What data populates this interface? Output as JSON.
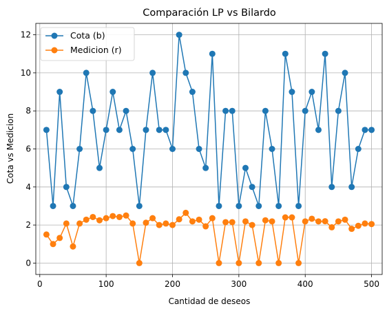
{
  "chart_data": {
    "type": "line",
    "title": "Comparación LP vs Bilardo",
    "xlabel": "Cantidad de deseos",
    "ylabel": "Cota vs Medicion",
    "xlim": [
      -6,
      516
    ],
    "ylim": [
      -0.6,
      12.6
    ],
    "xticks": [
      0,
      100,
      200,
      300,
      400,
      500
    ],
    "yticks": [
      0,
      2,
      4,
      6,
      8,
      10,
      12
    ],
    "grid": true,
    "legend_position": "upper-left",
    "x": [
      10,
      20,
      30,
      40,
      50,
      60,
      70,
      80,
      90,
      100,
      110,
      120,
      130,
      140,
      150,
      160,
      170,
      180,
      190,
      200,
      210,
      220,
      230,
      240,
      250,
      260,
      270,
      280,
      290,
      300,
      310,
      320,
      330,
      340,
      350,
      360,
      370,
      380,
      390,
      400,
      410,
      420,
      430,
      440,
      450,
      460,
      470,
      480,
      490,
      500
    ],
    "series": [
      {
        "name": "Cota (b)",
        "color": "#1f77b4",
        "values": [
          7,
          3,
          9,
          4,
          3,
          6,
          10,
          8,
          5,
          7,
          9,
          7,
          8,
          6,
          3,
          7,
          10,
          7,
          7,
          6,
          12,
          10,
          9,
          6,
          5,
          11,
          3,
          8,
          8,
          3,
          5,
          4,
          3,
          8,
          6,
          3,
          11,
          9,
          3,
          8,
          9,
          7,
          11,
          4,
          8,
          10,
          4,
          6,
          7,
          7
        ]
      },
      {
        "name": "Medicion (r)",
        "color": "#ff7f0e",
        "values": [
          1.5,
          1.0,
          1.32,
          2.08,
          0.87,
          2.08,
          2.28,
          2.42,
          2.25,
          2.36,
          2.47,
          2.42,
          2.5,
          2.08,
          0.0,
          2.12,
          2.36,
          2.0,
          2.08,
          2.0,
          2.3,
          2.64,
          2.19,
          2.28,
          1.93,
          2.36,
          0.0,
          2.15,
          2.15,
          0.0,
          2.19,
          2.0,
          0.0,
          2.25,
          2.19,
          0.0,
          2.4,
          2.4,
          0.0,
          2.19,
          2.33,
          2.19,
          2.2,
          1.88,
          2.19,
          2.28,
          1.8,
          1.96,
          2.08,
          2.05
        ]
      }
    ]
  }
}
